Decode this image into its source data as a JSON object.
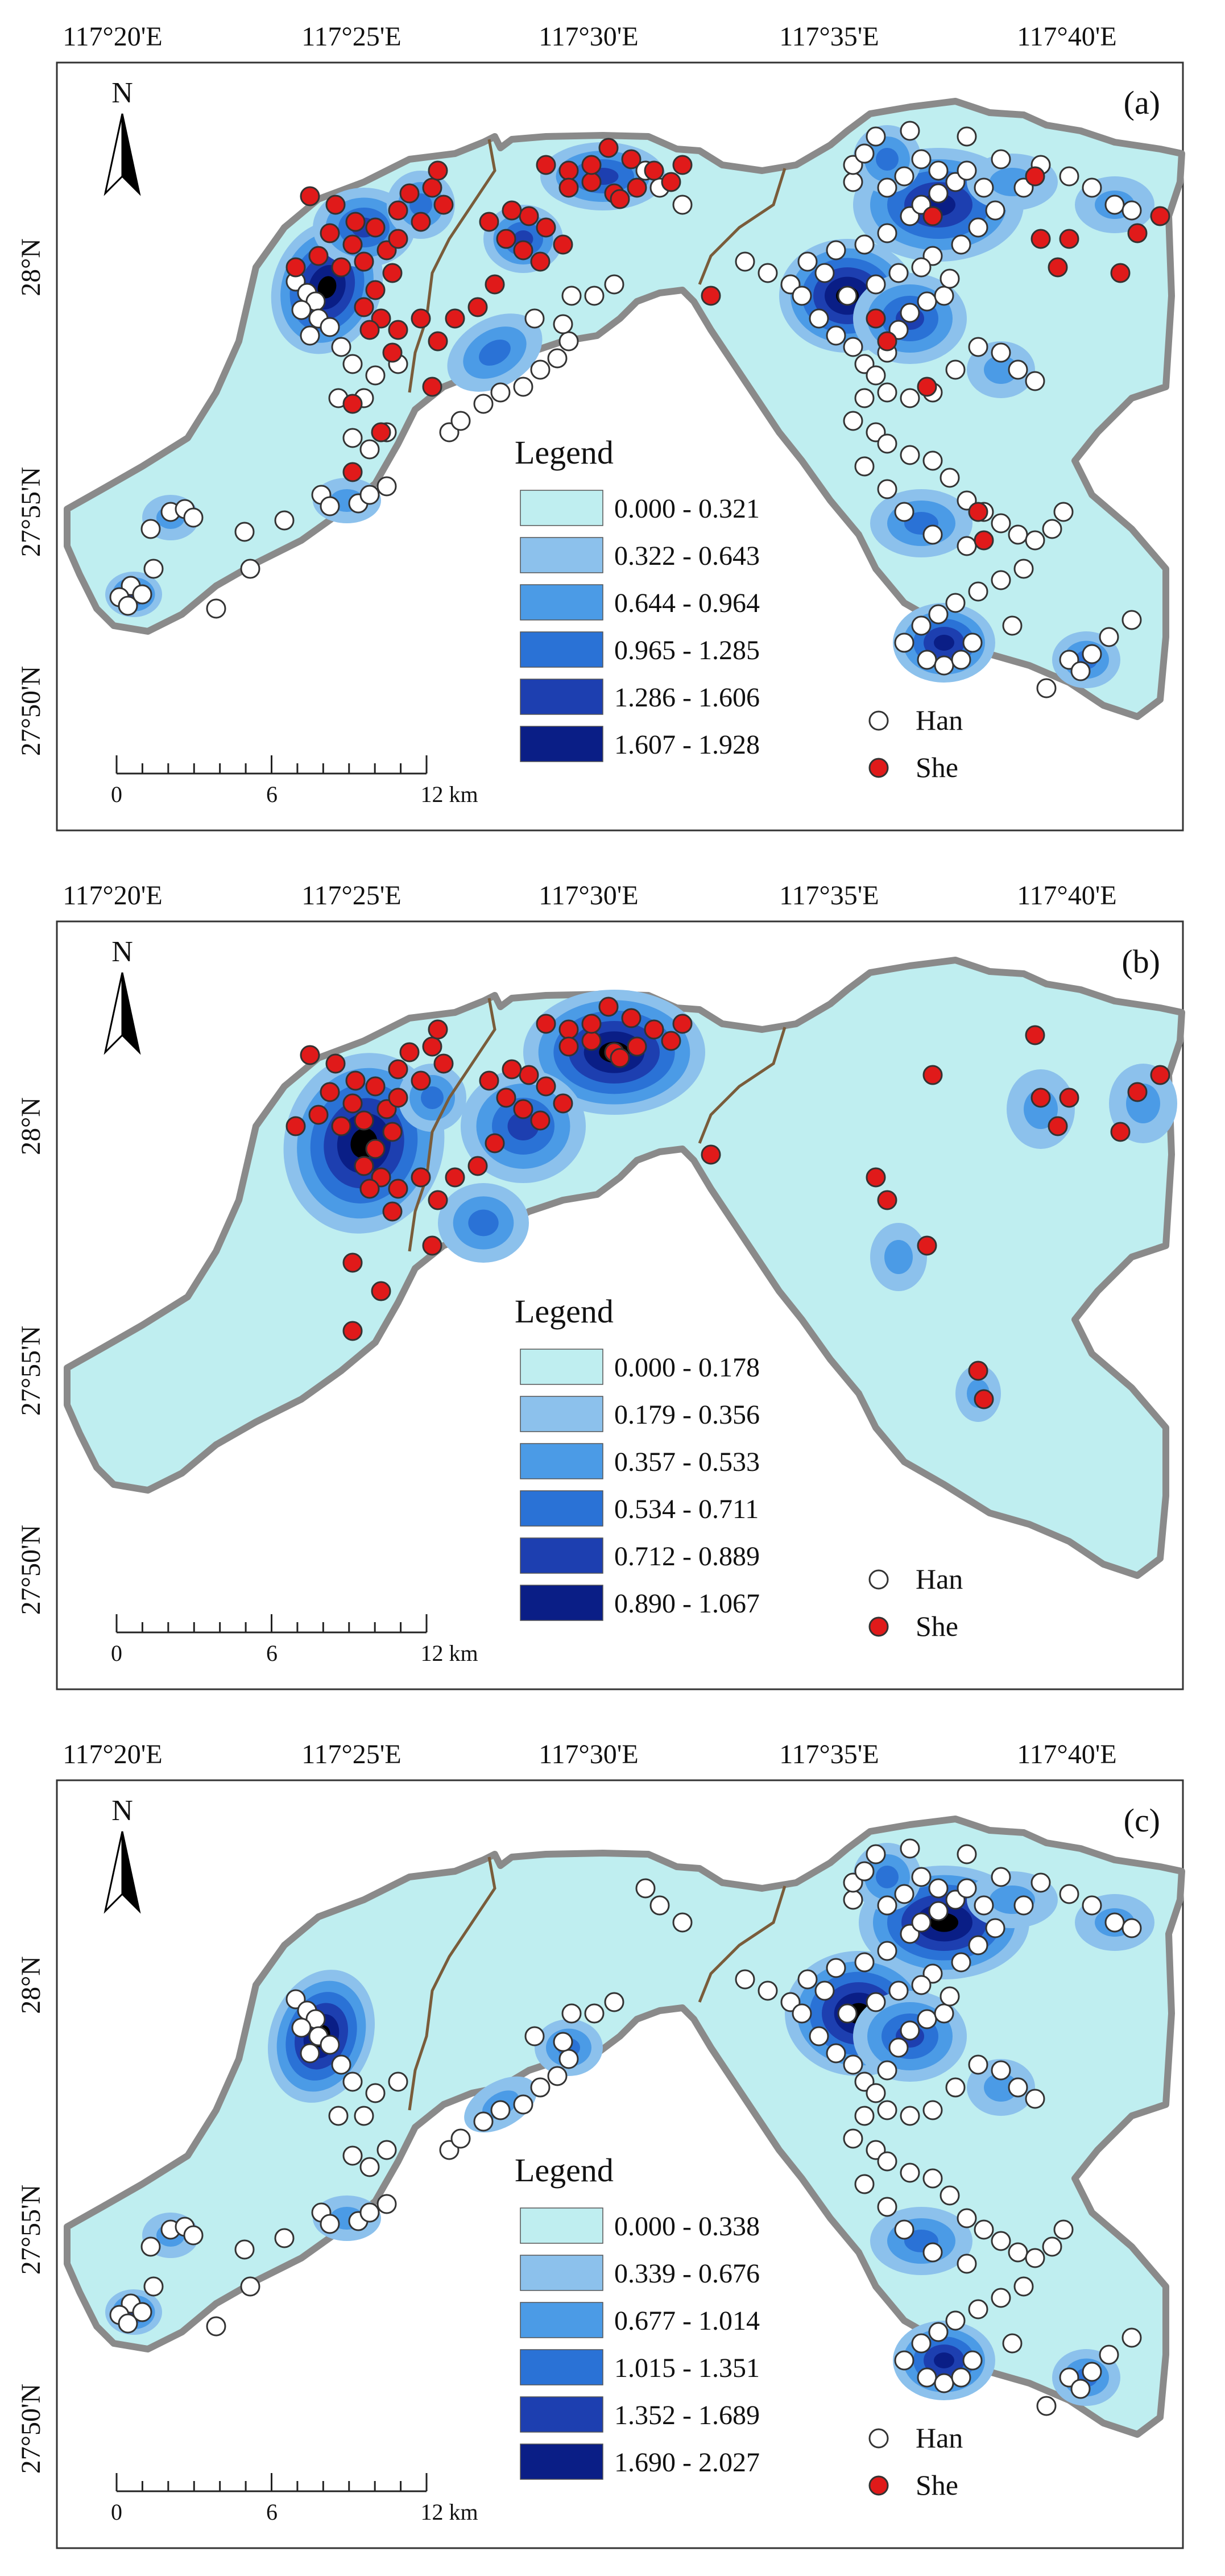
{
  "figure": {
    "axis_top_labels": [
      "117°20'E",
      "117°25'E",
      "117°30'E",
      "117°35'E",
      "117°40'E"
    ],
    "axis_left_labels": [
      "28°N",
      "27°55'N",
      "27°50'N"
    ],
    "north_label": "N",
    "scale_labels": [
      "0",
      "6",
      "12 km"
    ],
    "legend_title": "Legend",
    "han_label": "Han",
    "she_label": "She",
    "colors": {
      "class1": "#bfeef0",
      "class2": "#8cc1ec",
      "class3": "#4b9be6",
      "class4": "#2a72d6",
      "class5": "#1d3fb0",
      "class6": "#0a1e86",
      "border": "#8a8a8a",
      "han_fill": "#ffffff",
      "she_fill": "#e01a1a"
    }
  },
  "panels": [
    {
      "id": "a",
      "panel_label": "(a)",
      "legend_ranges": [
        "0.000 - 0.321",
        "0.322 - 0.643",
        "0.644 - 0.964",
        "0.965 - 1.285",
        "1.286 - 1.606",
        "1.607 - 1.928"
      ]
    },
    {
      "id": "b",
      "panel_label": "(b)",
      "legend_ranges": [
        "0.000 - 0.178",
        "0.179 - 0.356",
        "0.357 - 0.533",
        "0.534 - 0.711",
        "0.712 - 0.889",
        "0.890 - 1.067"
      ]
    },
    {
      "id": "c",
      "panel_label": "(c)",
      "legend_ranges": [
        "0.000 - 0.338",
        "0.339 - 0.676",
        "0.677 - 1.014",
        "1.015 - 1.351",
        "1.352 - 1.689",
        "1.690 - 2.027"
      ]
    }
  ]
}
